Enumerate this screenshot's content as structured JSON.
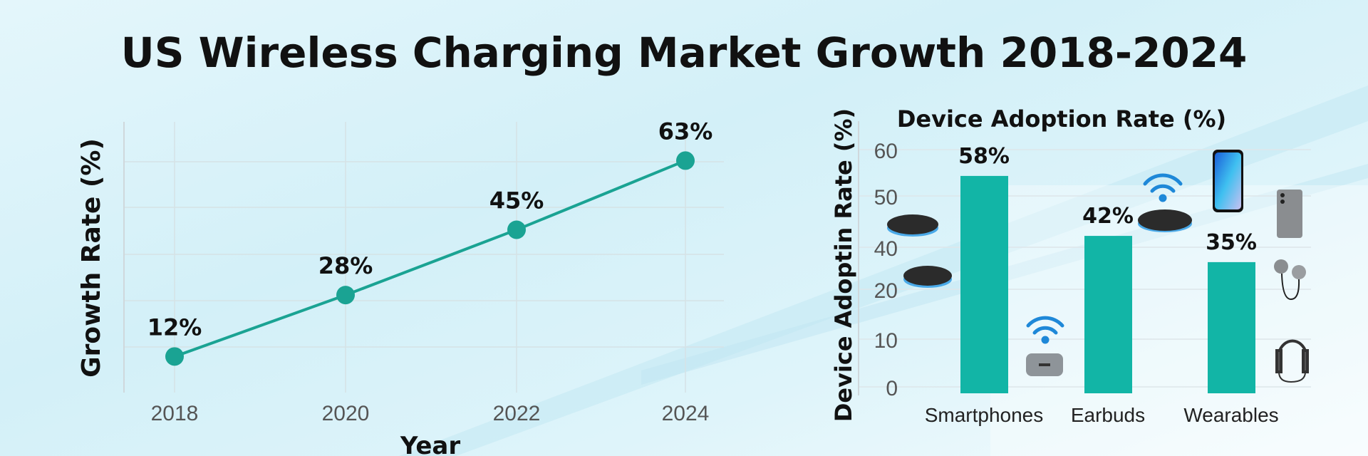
{
  "title": "US Wireless Charging Market Growth 2018-2024",
  "colors": {
    "accent": "#1aa393",
    "bar": "#12b5a6",
    "wifi": "#1e88d8"
  },
  "chart_data": [
    {
      "type": "line",
      "xlabel": "Year",
      "ylabel": "Growth Rate (%)",
      "x": [
        "2018",
        "2020",
        "2022",
        "2024"
      ],
      "values": [
        12,
        28,
        45,
        63
      ],
      "data_labels": [
        "12%",
        "28%",
        "45%",
        "63%"
      ],
      "grid": true
    },
    {
      "type": "bar",
      "title": "Device Adoption Rate (%)",
      "ylabel": "Device Adoptin Rate (%)",
      "categories": [
        "Smartphones",
        "Earbuds",
        "Wearables"
      ],
      "values": [
        58,
        42,
        35
      ],
      "data_labels": [
        "58%",
        "42%",
        "35%"
      ],
      "yticks": [
        "60",
        "50",
        "40",
        "20",
        "10",
        "0"
      ],
      "ylim": [
        0,
        60
      ],
      "grid": true,
      "icons": [
        "charging-pad-icon",
        "wifi-icon",
        "earbud-case-icon",
        "smartphone-icon",
        "phone-back-icon",
        "earbuds-icon",
        "headphones-icon"
      ]
    }
  ]
}
